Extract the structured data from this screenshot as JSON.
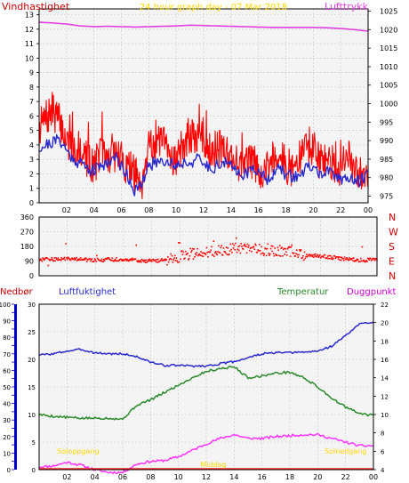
{
  "colors": {
    "background": "#ffffff",
    "plot_bg": "#f4f4f4",
    "grid": "#c8c8c8",
    "frame": "#000000",
    "wind_speed": "#ff0000",
    "wind_avg": "#2a2acc",
    "pressure": "#e040e0",
    "wind_dir": "#ff0000",
    "humidity": "#2a2acc",
    "temperature": "#2a8a2a",
    "dewpoint": "#ff33ff",
    "rain": "#0000cc",
    "title": "#ffd700",
    "sun": "#ffd700"
  },
  "chart_data": [
    {
      "type": "line",
      "title": "24 hour graph day - 07 Mar 2018",
      "ylabel": "Vindhastighet",
      "y2label": "Lufttrykk",
      "x_ticks": [
        "02",
        "04",
        "06",
        "08",
        "10",
        "12",
        "14",
        "16",
        "18",
        "20",
        "22",
        "00"
      ],
      "y_ticks": [
        "0",
        "1",
        "2",
        "3",
        "4",
        "5",
        "6",
        "7",
        "8",
        "9",
        "10",
        "11",
        "12",
        "13"
      ],
      "y2_ticks": [
        "975",
        "980",
        "985",
        "990",
        "995",
        "1000",
        "1005",
        "1010",
        "1015",
        "1020",
        "1025"
      ],
      "ylim": [
        0,
        13.4
      ],
      "y2lim": [
        973.2,
        1025.6
      ],
      "xlim": [
        0,
        24
      ],
      "series": [
        {
          "x": [
            0,
            0.5,
            1,
            1.5,
            2,
            2.5,
            3,
            3.5,
            4,
            4.5,
            5,
            5.5,
            6,
            6.5,
            7,
            7.5,
            8,
            8.5,
            9,
            9.5,
            10,
            10.5,
            11,
            11.5,
            12,
            12.5,
            13,
            13.5,
            14,
            14.5,
            15,
            15.5,
            16,
            16.5,
            17,
            17.5,
            18,
            18.5,
            19,
            19.5,
            20,
            20.5,
            21,
            21.5,
            22,
            22.5,
            23,
            23.5,
            24
          ],
          "values": [
            5.2,
            5.8,
            6.4,
            5.6,
            4.3,
            3.6,
            3.8,
            3.0,
            2.5,
            3.6,
            3.0,
            3.4,
            3.0,
            2.4,
            2.0,
            1.4,
            4.4,
            3.8,
            4.2,
            3.4,
            3.0,
            4.0,
            4.4,
            4.6,
            4.3,
            3.8,
            3.6,
            4.0,
            3.2,
            2.8,
            2.5,
            3.0,
            2.4,
            2.0,
            3.2,
            3.4,
            2.6,
            2.3,
            3.0,
            4.0,
            3.4,
            2.8,
            3.0,
            2.6,
            2.4,
            3.3,
            2.0,
            2.2,
            2.4
          ]
        },
        {
          "x": [
            0,
            0.5,
            1,
            1.5,
            2,
            2.5,
            3,
            3.5,
            4,
            4.5,
            5,
            5.5,
            6,
            6.5,
            7,
            7.5,
            8,
            8.5,
            9,
            9.5,
            10,
            10.5,
            11,
            11.5,
            12,
            12.5,
            13,
            13.5,
            14,
            14.5,
            15,
            15.5,
            16,
            16.5,
            17,
            17.5,
            18,
            18.5,
            19,
            19.5,
            20,
            20.5,
            21,
            21.5,
            22,
            22.5,
            23,
            23.5,
            24
          ],
          "values": [
            3.8,
            4.0,
            4.2,
            4.4,
            3.6,
            3.0,
            2.8,
            2.4,
            2.2,
            2.6,
            2.8,
            3.2,
            2.6,
            1.8,
            0.8,
            1.2,
            2.6,
            2.8,
            3.0,
            2.8,
            2.6,
            2.8,
            2.8,
            3.0,
            2.7,
            2.4,
            2.6,
            2.8,
            2.5,
            2.2,
            2.0,
            2.2,
            2.4,
            1.6,
            2.0,
            2.3,
            2.0,
            1.8,
            1.9,
            2.4,
            2.4,
            2.0,
            2.1,
            1.9,
            1.7,
            1.8,
            1.4,
            1.6,
            2.2
          ]
        },
        {
          "axis": "right",
          "x": [
            0,
            1,
            2,
            3,
            4,
            5,
            6,
            7,
            8,
            9,
            10,
            11,
            12,
            13,
            14,
            15,
            16,
            17,
            18,
            19,
            20,
            21,
            22,
            23,
            24
          ],
          "values": [
            1022.0,
            1021.8,
            1021.5,
            1021.0,
            1020.8,
            1020.9,
            1020.8,
            1020.7,
            1020.8,
            1020.9,
            1021.0,
            1021.2,
            1021.1,
            1021.0,
            1020.9,
            1020.8,
            1020.7,
            1020.6,
            1020.6,
            1020.6,
            1020.6,
            1020.5,
            1020.3,
            1020.0,
            1019.6
          ]
        }
      ]
    },
    {
      "type": "scatter",
      "y_ticks": [
        "0",
        "90",
        "180",
        "270",
        "360"
      ],
      "y2_ticks": [
        "N",
        "E",
        "S",
        "W",
        "N"
      ],
      "ylim": [
        0,
        360
      ],
      "xlim": [
        0,
        24
      ],
      "series": [
        {
          "x": [
            0,
            1,
            2,
            3,
            4,
            5,
            6,
            7,
            8,
            9,
            10,
            11,
            12,
            13,
            14,
            15,
            16,
            17,
            18,
            19,
            20,
            21,
            22,
            23,
            24
          ],
          "values": [
            100,
            100,
            105,
            100,
            95,
            100,
            100,
            95,
            90,
            100,
            120,
            140,
            145,
            155,
            175,
            165,
            150,
            150,
            145,
            125,
            120,
            110,
            100,
            95,
            100
          ]
        }
      ]
    },
    {
      "type": "line",
      "legend": [
        "Nedbør",
        "Luftfuktighet",
        "Temperatur",
        "Duggpunkt"
      ],
      "x_ticks": [
        "02",
        "04",
        "06",
        "08",
        "10",
        "12",
        "14",
        "16",
        "18",
        "20",
        "22",
        "00"
      ],
      "rain_ticks": [
        "0",
        "10",
        "20",
        "30",
        "40",
        "50",
        "60",
        "70",
        "80",
        "90",
        "100"
      ],
      "humidity_ticks": [
        "0",
        "5",
        "10",
        "15",
        "20",
        "25",
        "30"
      ],
      "temp_ticks": [
        "4",
        "6",
        "8",
        "10",
        "12",
        "14",
        "16",
        "18",
        "20",
        "22"
      ],
      "rain_lim": [
        0,
        100
      ],
      "humidity_lim": [
        0,
        30
      ],
      "temp_lim": [
        4,
        22
      ],
      "xlim": [
        0,
        24
      ],
      "annotations": [
        {
          "text": "Soloppgang",
          "x": 2.8
        },
        {
          "text": "Middag",
          "x": 12.5
        },
        {
          "text": "Solnedgang",
          "x": 22.0
        }
      ],
      "series": [
        {
          "x": [
            0,
            1,
            2,
            3,
            4,
            5,
            6,
            7,
            8,
            9,
            10,
            11,
            12,
            13,
            14,
            15,
            16,
            17,
            18,
            19,
            20,
            21,
            22,
            23,
            24
          ],
          "values": [
            20.8,
            21.0,
            21.5,
            21.8,
            21.2,
            21.0,
            21.0,
            20.5,
            19.5,
            18.9,
            18.9,
            18.8,
            18.8,
            19.2,
            19.6,
            20.3,
            21.0,
            21.2,
            21.2,
            21.3,
            21.5,
            22.4,
            24.3,
            26.4,
            26.8
          ]
        },
        {
          "x": [
            0,
            1,
            2,
            3,
            4,
            5,
            6,
            7,
            8,
            9,
            10,
            11,
            12,
            13,
            14,
            15,
            16,
            17,
            18,
            19,
            20,
            21,
            22,
            23,
            24
          ],
          "values": [
            10.0,
            9.8,
            9.7,
            9.6,
            9.6,
            9.6,
            9.5,
            11.0,
            11.6,
            12.4,
            13.2,
            14.0,
            14.7,
            15.0,
            15.2,
            14.0,
            14.2,
            14.5,
            14.6,
            14.0,
            13.0,
            11.8,
            10.8,
            10.1,
            9.9
          ]
        },
        {
          "x": [
            0,
            1,
            2,
            3,
            4,
            5,
            6,
            7,
            8,
            9,
            10,
            11,
            12,
            13,
            14,
            15,
            16,
            17,
            18,
            19,
            20,
            21,
            22,
            23,
            24
          ],
          "values": [
            4.3,
            4.4,
            4.8,
            4.5,
            4.0,
            3.7,
            3.7,
            4.6,
            4.9,
            5.0,
            5.4,
            6.1,
            6.8,
            7.4,
            7.8,
            7.4,
            7.4,
            7.6,
            7.7,
            7.8,
            7.8,
            7.4,
            7.0,
            6.6,
            6.6
          ]
        },
        {
          "x": [
            0,
            24
          ],
          "values": [
            0,
            0
          ]
        }
      ]
    }
  ]
}
